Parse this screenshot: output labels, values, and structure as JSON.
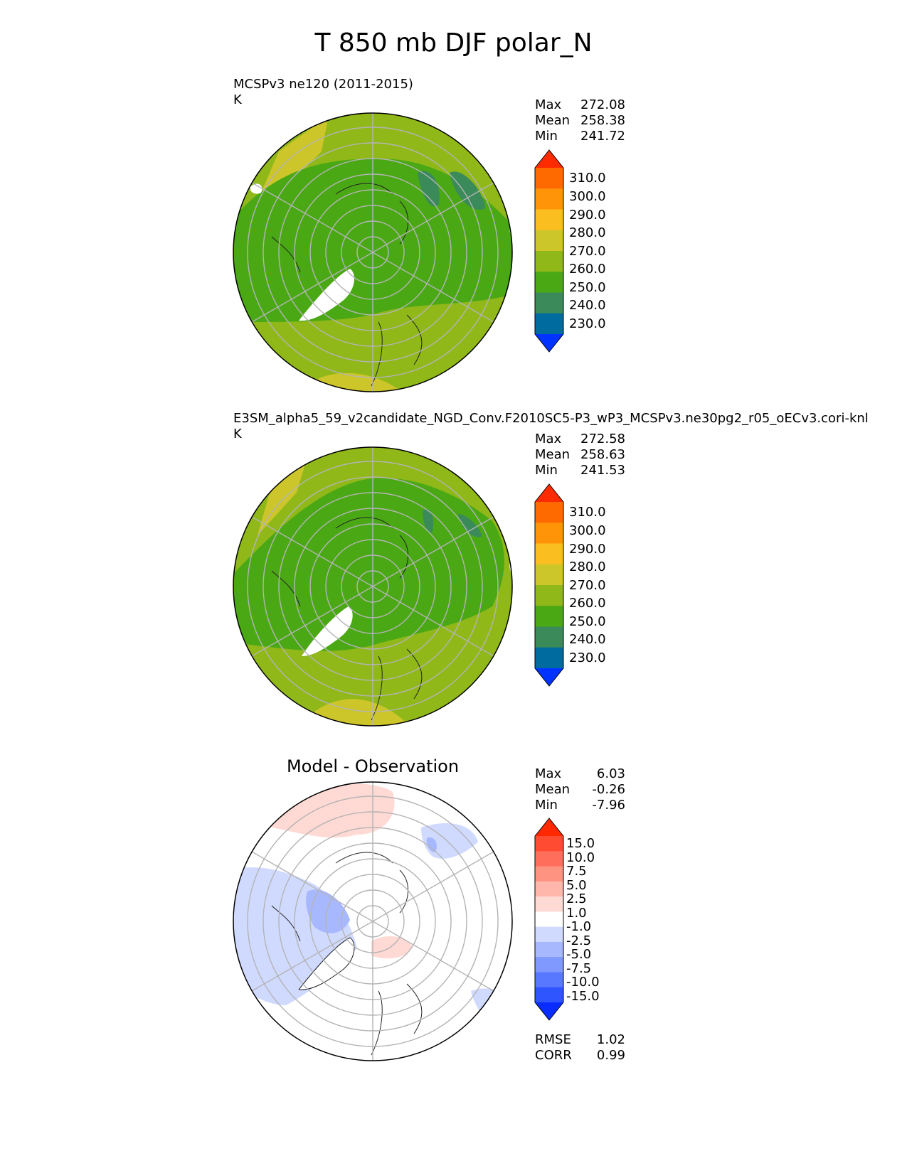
{
  "figure": {
    "title": "T 850 mb DJF polar_N"
  },
  "panels": [
    {
      "id": "test",
      "title": "MCSPv3 ne120 (2011-2015)",
      "units": "K",
      "stats": [
        {
          "label": "Max",
          "value": "272.08"
        },
        {
          "label": "Mean",
          "value": "258.38"
        },
        {
          "label": "Min",
          "value": "241.72"
        }
      ],
      "colorbar": {
        "levels": [
          230,
          240,
          250,
          260,
          270,
          280,
          290,
          300,
          310
        ],
        "labels": [
          "310.0",
          "300.0",
          "290.0",
          "280.0",
          "270.0",
          "260.0",
          "250.0",
          "240.0",
          "230.0"
        ],
        "colors": [
          "#0033ff",
          "#006b9e",
          "#3a8a5a",
          "#4aa815",
          "#8fb818",
          "#cdc62a",
          "#fbbe20",
          "#ff9408",
          "#ff6a00",
          "#ff2b00"
        ],
        "extend": "both"
      }
    },
    {
      "id": "ref",
      "title": "E3SM_alpha5_59_v2candidate_NGD_Conv.F2010SC5-P3_wP3_MCSPv3.ne30pg2_r05_oECv3.cori-knl",
      "units": "K",
      "stats": [
        {
          "label": "Max",
          "value": "272.58"
        },
        {
          "label": "Mean",
          "value": "258.63"
        },
        {
          "label": "Min",
          "value": "241.53"
        }
      ],
      "colorbar": {
        "levels": [
          230,
          240,
          250,
          260,
          270,
          280,
          290,
          300,
          310
        ],
        "labels": [
          "310.0",
          "300.0",
          "290.0",
          "280.0",
          "270.0",
          "260.0",
          "250.0",
          "240.0",
          "230.0"
        ],
        "colors": [
          "#0033ff",
          "#006b9e",
          "#3a8a5a",
          "#4aa815",
          "#8fb818",
          "#cdc62a",
          "#fbbe20",
          "#ff9408",
          "#ff6a00",
          "#ff2b00"
        ],
        "extend": "both"
      }
    },
    {
      "id": "diff",
      "title": "Model - Observation",
      "units": "",
      "stats": [
        {
          "label": "Max",
          "value": "6.03"
        },
        {
          "label": "Mean",
          "value": "-0.26"
        },
        {
          "label": "Min",
          "value": "-7.96"
        }
      ],
      "metrics": [
        {
          "label": "RMSE",
          "value": "1.02"
        },
        {
          "label": "CORR",
          "value": "0.99"
        }
      ],
      "colorbar": {
        "levels": [
          -15,
          -10,
          -7.5,
          -5,
          -2.5,
          -1,
          1,
          2.5,
          5,
          7.5,
          10,
          15
        ],
        "labels": [
          "15.0",
          "10.0",
          "7.5",
          "5.0",
          "2.5",
          "1.0",
          "-1.0",
          "-2.5",
          "-5.0",
          "-7.5",
          "-10.0",
          "-15.0"
        ],
        "colors": [
          "#0a2dff",
          "#2e55ff",
          "#5878ff",
          "#8099ff",
          "#a8b8ff",
          "#d0daff",
          "#ffffff",
          "#ffd9d4",
          "#ffb6ab",
          "#ff9382",
          "#ff6e5a",
          "#ff4b32",
          "#ff2800"
        ],
        "extend": "both"
      }
    }
  ]
}
